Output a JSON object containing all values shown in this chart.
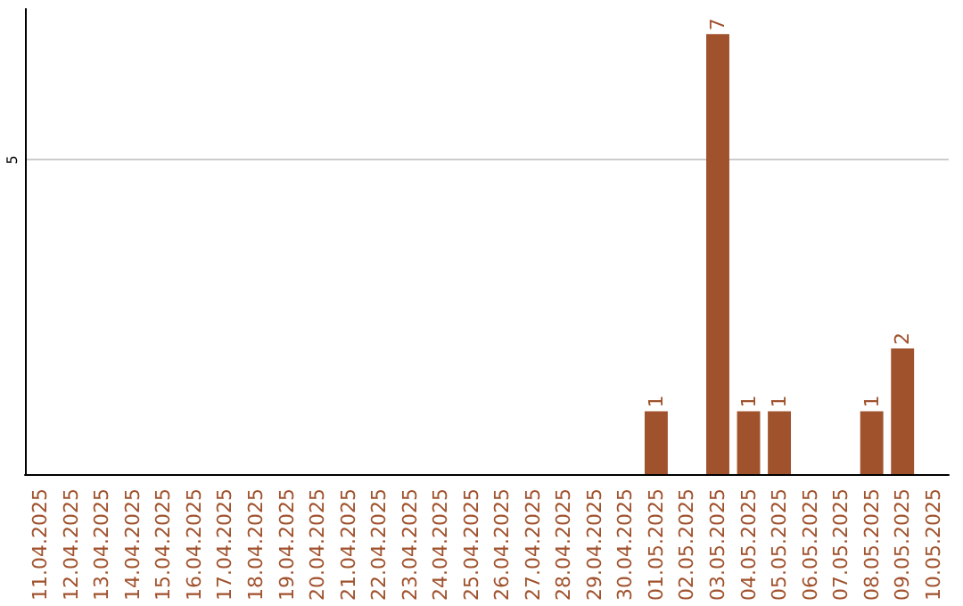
{
  "chart_data": {
    "type": "bar",
    "categories": [
      "11.04.2025",
      "12.04.2025",
      "13.04.2025",
      "14.04.2025",
      "15.04.2025",
      "16.04.2025",
      "17.04.2025",
      "18.04.2025",
      "19.04.2025",
      "20.04.2025",
      "21.04.2025",
      "22.04.2025",
      "23.04.2025",
      "24.04.2025",
      "25.04.2025",
      "26.04.2025",
      "27.04.2025",
      "28.04.2025",
      "29.04.2025",
      "30.04.2025",
      "01.05.2025",
      "02.05.2025",
      "03.05.2025",
      "04.05.2025",
      "05.05.2025",
      "06.05.2025",
      "07.05.2025",
      "08.05.2025",
      "09.05.2025",
      "10.05.2025"
    ],
    "values": [
      null,
      null,
      null,
      null,
      null,
      null,
      null,
      null,
      null,
      null,
      null,
      null,
      null,
      null,
      null,
      null,
      null,
      null,
      null,
      null,
      1,
      null,
      7,
      1,
      1,
      null,
      null,
      1,
      2,
      null
    ],
    "value_labels": [
      null,
      null,
      null,
      null,
      null,
      null,
      null,
      null,
      null,
      null,
      null,
      null,
      null,
      null,
      null,
      null,
      null,
      null,
      null,
      null,
      "1",
      null,
      "7",
      "1",
      "1",
      null,
      null,
      "1",
      "2",
      null
    ],
    "color": "#a0522d",
    "ylim": [
      0,
      7.4
    ],
    "yticks": [
      5
    ],
    "grid": "y"
  }
}
